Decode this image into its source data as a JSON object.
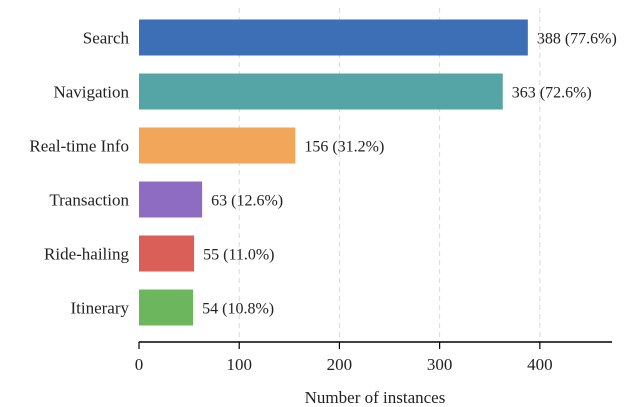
{
  "chart_data": {
    "type": "bar",
    "orientation": "horizontal",
    "categories": [
      "Search",
      "Navigation",
      "Real-time Info",
      "Transaction",
      "Ride-hailing",
      "Itinerary"
    ],
    "values": [
      388,
      363,
      156,
      63,
      55,
      54
    ],
    "value_labels": [
      "388 (77.6%)",
      "363 (72.6%)",
      "156 (31.2%)",
      "63 (12.6%)",
      "55 (11.0%)",
      "54 (10.8%)"
    ],
    "colors": [
      "#3d6fb6",
      "#55a4a6",
      "#f2a65a",
      "#8e6cc1",
      "#da5f58",
      "#6cb65d"
    ],
    "xlabel": "Number of instances",
    "ylabel": "",
    "title": "",
    "xlim": [
      0,
      472
    ],
    "xticks": [
      0,
      100,
      200,
      300,
      400
    ],
    "xtick_labels": [
      "0",
      "100",
      "200",
      "300",
      "400"
    ],
    "grid": "vertical-dashed",
    "legend": "none"
  }
}
